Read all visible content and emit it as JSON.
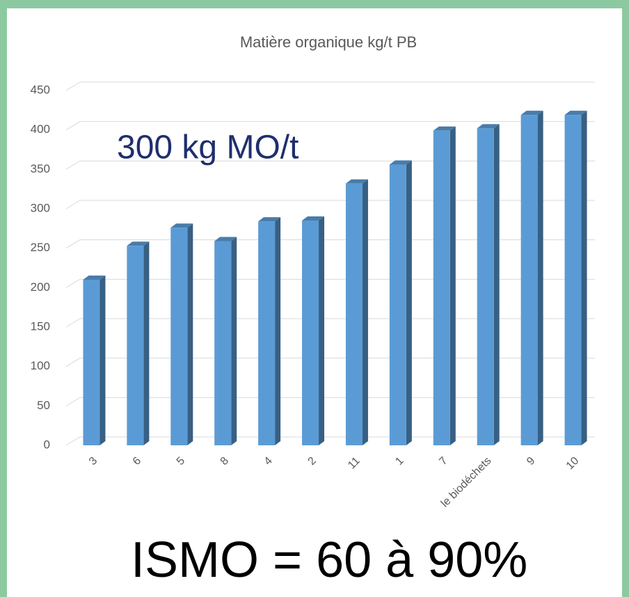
{
  "chart_data": {
    "type": "bar",
    "title": "Matière organique kg/t PB",
    "categories": [
      "3",
      "6",
      "5",
      "8",
      "4",
      "2",
      "11",
      "1",
      "7",
      "le biodéchets",
      "9",
      "10"
    ],
    "values": [
      210,
      253,
      276,
      259,
      284,
      285,
      332,
      356,
      399,
      402,
      419,
      419
    ],
    "color": "#5b9bd5",
    "ylim": [
      0,
      450
    ],
    "yticks": [
      0,
      50,
      100,
      150,
      200,
      250,
      300,
      350,
      400,
      450
    ],
    "grid": true,
    "annotations": [
      "300 kg MO/t",
      "ISMO = 60 à 90%"
    ]
  }
}
